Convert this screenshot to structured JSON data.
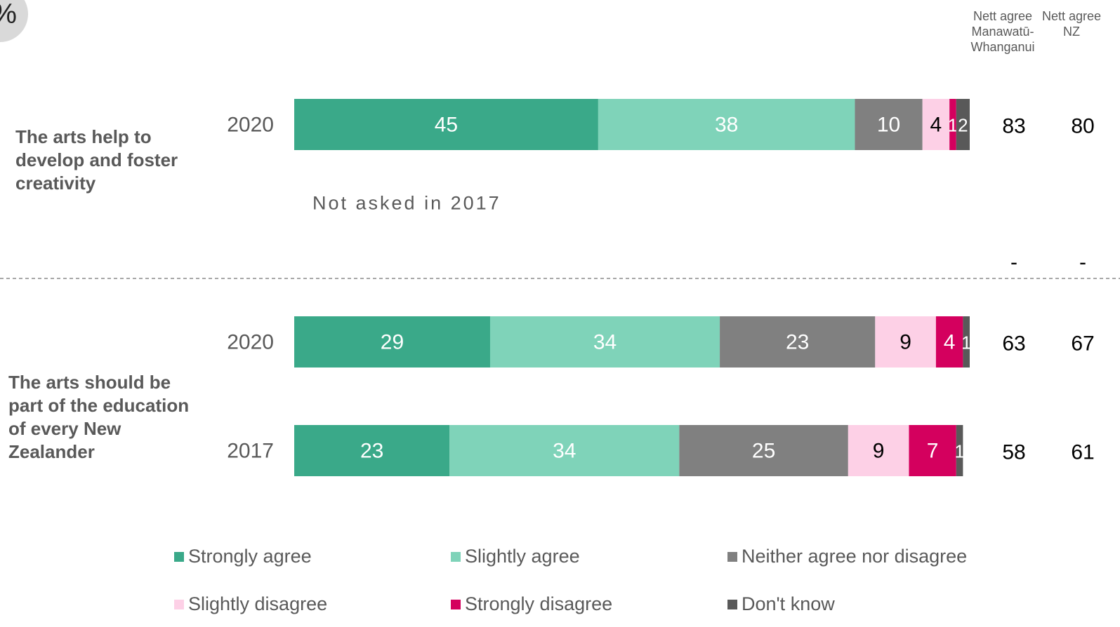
{
  "badge": "%",
  "column_headers": {
    "region": "Nett agree Manawatū-Whanganui",
    "region_lines": [
      "Nett agree",
      "Manawatū-",
      "Whanganui"
    ],
    "nz": "Nett agree NZ",
    "nz_lines": [
      "Nett agree",
      "NZ"
    ]
  },
  "colors": {
    "Strongly agree": "#3aa989",
    "Slightly agree": "#7fd3b9",
    "Neither agree nor disagree": "#808080",
    "Slightly disagree": "#fdd0e6",
    "Strongly disagree": "#d4005e",
    "Don't know": "#595959"
  },
  "chart_data": {
    "type": "bar",
    "orientation": "horizontal",
    "stacked": true,
    "xlim": [
      0,
      100
    ],
    "categories": [
      "Strongly agree",
      "Slightly agree",
      "Neither agree nor disagree",
      "Slightly disagree",
      "Strongly disagree",
      "Don't know"
    ],
    "groups": [
      {
        "statement": "The arts help to develop and foster creativity",
        "statement_lines": [
          "The arts help to",
          "develop and foster",
          "creativity"
        ],
        "rows": [
          {
            "year": "2020",
            "values": [
              45,
              38,
              10,
              4,
              1,
              2
            ],
            "nett_region": "83",
            "nett_nz": "80",
            "asked": true
          },
          {
            "year": "2017",
            "note": "Not asked in 2017",
            "nett_region": "-",
            "nett_nz": "-",
            "asked": false
          }
        ]
      },
      {
        "statement": "The arts should be part of the education of every New Zealander",
        "statement_lines": [
          "The arts should be",
          "part of the education",
          "of every New",
          "Zealander"
        ],
        "rows": [
          {
            "year": "2020",
            "values": [
              29,
              34,
              23,
              9,
              4,
              1
            ],
            "nett_region": "63",
            "nett_nz": "67",
            "asked": true
          },
          {
            "year": "2017",
            "values": [
              23,
              34,
              25,
              9,
              7,
              1
            ],
            "nett_region": "58",
            "nett_nz": "61",
            "asked": true
          }
        ]
      }
    ],
    "legend": [
      "Strongly agree",
      "Slightly agree",
      "Neither agree nor disagree",
      "Slightly disagree",
      "Strongly disagree",
      "Don't know"
    ],
    "legend_position": "bottom"
  }
}
